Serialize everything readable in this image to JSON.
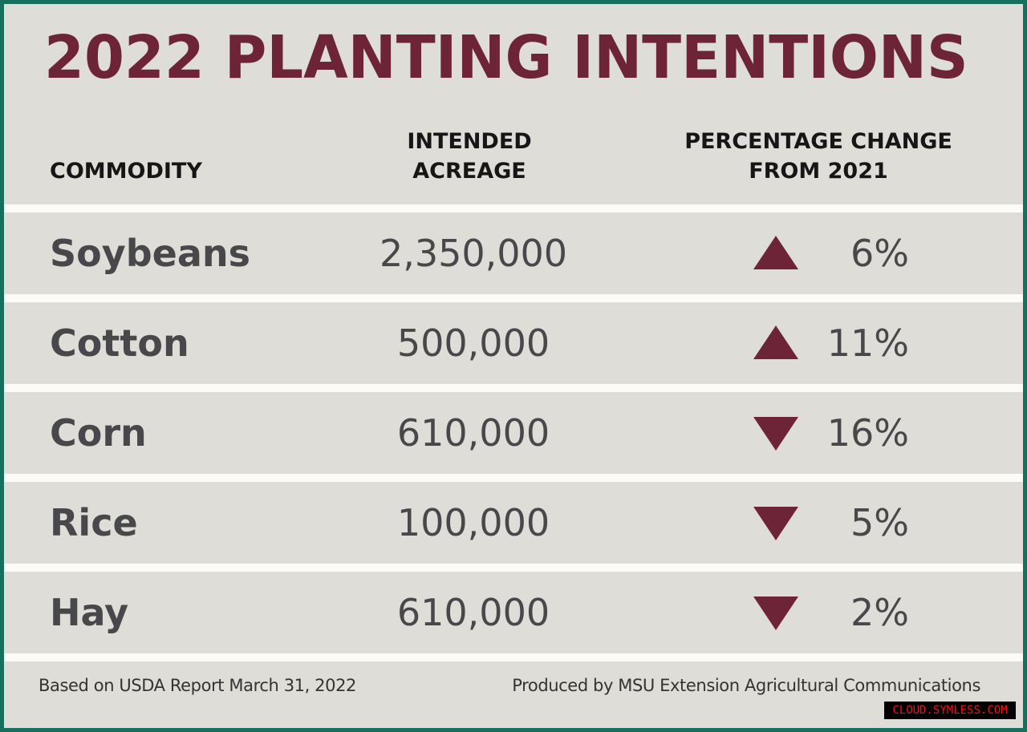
{
  "title": "2022 PLANTING INTENTIONS",
  "headers": {
    "commodity": "COMMODITY",
    "acreage_line1": "INTENDED",
    "acreage_line2": "ACREAGE",
    "pct_line1": "PERCENTAGE CHANGE",
    "pct_line2": "FROM 2021"
  },
  "rows": [
    {
      "commodity": "Soybeans",
      "acreage": "2,350,000",
      "direction": "up",
      "change": "6%"
    },
    {
      "commodity": "Cotton",
      "acreage": "500,000",
      "direction": "up",
      "change": "11%"
    },
    {
      "commodity": "Corn",
      "acreage": "610,000",
      "direction": "down",
      "change": "16%"
    },
    {
      "commodity": "Rice",
      "acreage": "100,000",
      "direction": "down",
      "change": "5%"
    },
    {
      "commodity": "Hay",
      "acreage": "610,000",
      "direction": "down",
      "change": "2%"
    }
  ],
  "footer": {
    "source": "Based on USDA Report March 31, 2022",
    "credit": "Produced by MSU Extension Agricultural Communications"
  },
  "watermark": "CLOUD.SYMLESS.COM",
  "colors": {
    "accent": "#6e2437",
    "border": "#17705d",
    "panel": "#dfddd7",
    "text": "#48484a"
  }
}
